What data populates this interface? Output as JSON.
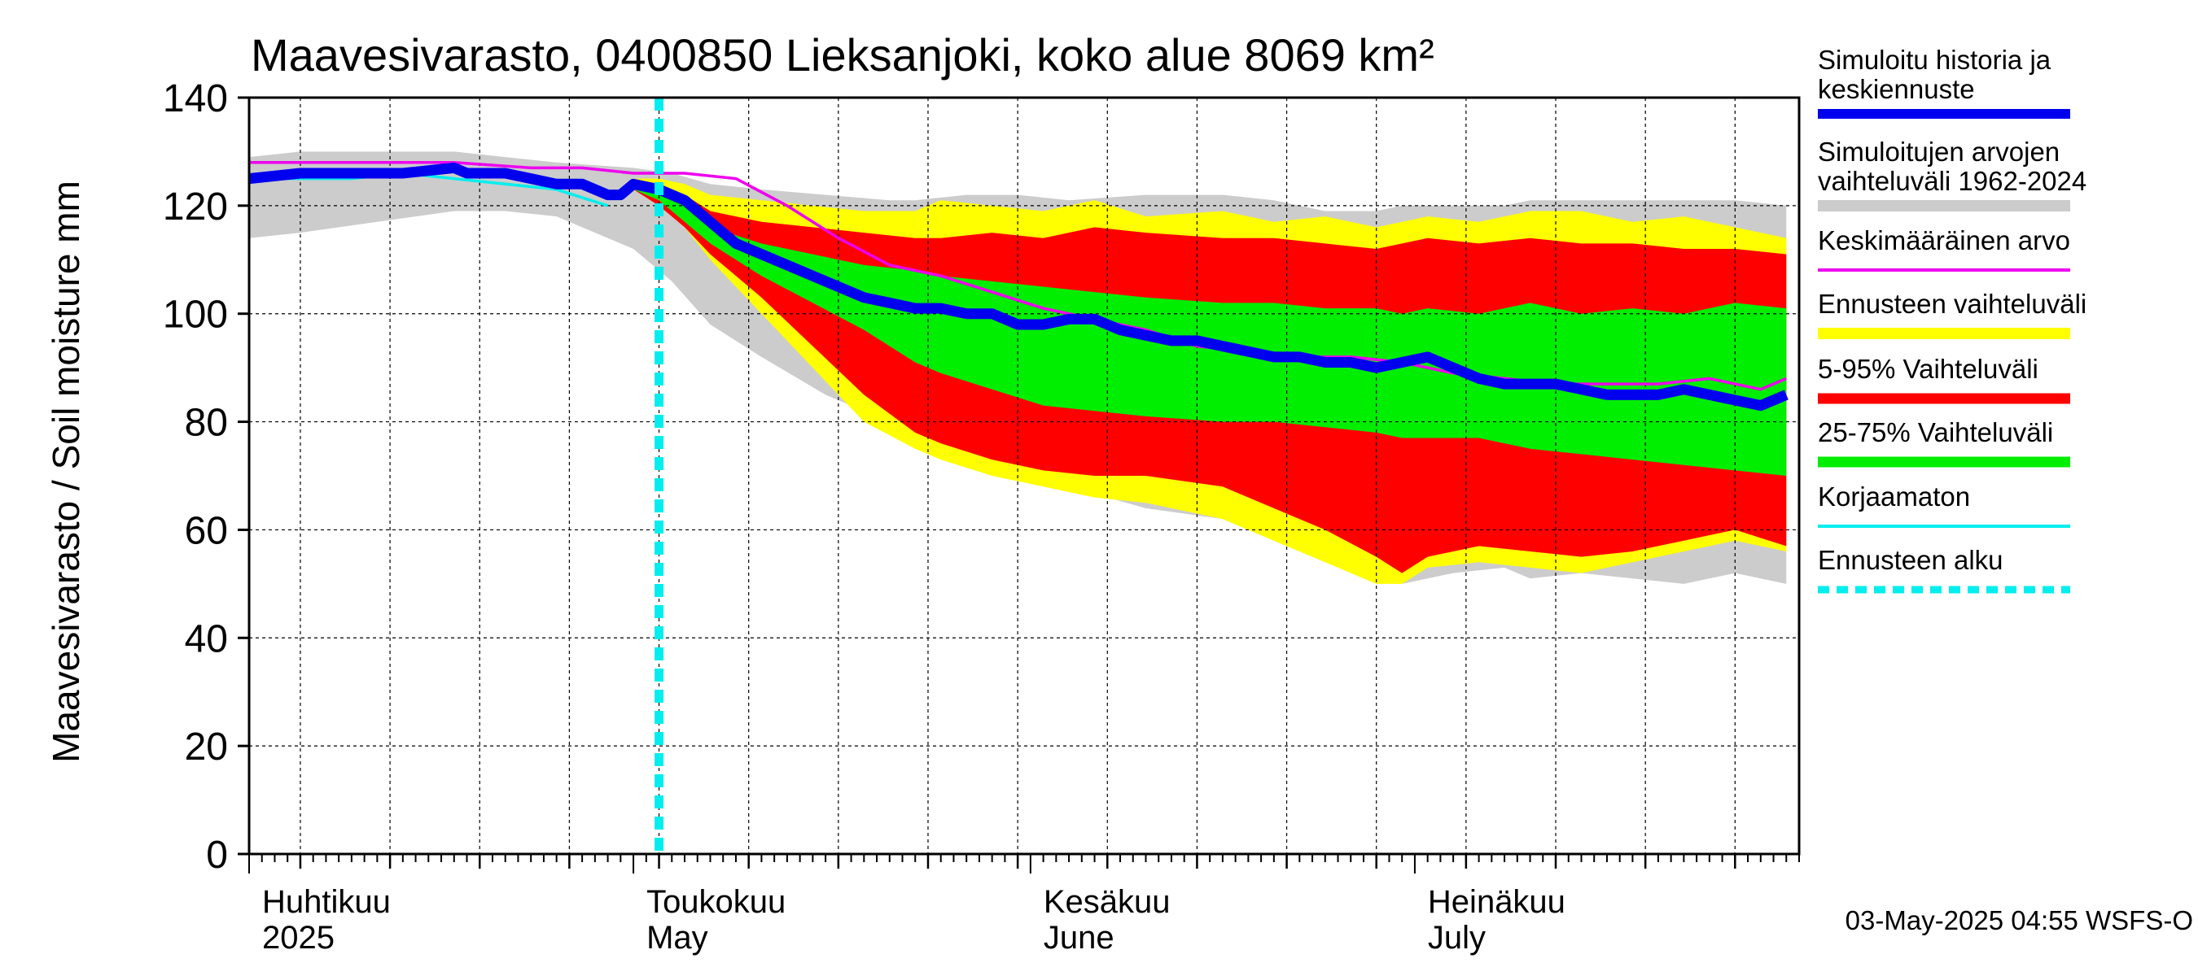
{
  "chart_data": {
    "type": "area",
    "title": "Maavesivarasto, 0400850 Lieksanjoki, koko alue 8069 km²",
    "ylabel": "Maavesivarasto / Soil moisture   mm",
    "ylim": [
      0,
      140
    ],
    "yticks": [
      0,
      20,
      40,
      60,
      80,
      100,
      120,
      140
    ],
    "x_start": "2025-04-01",
    "x_end": "2025-07-31",
    "forecast_start": "2025-05-03",
    "months": [
      {
        "fi": "Huhtikuu",
        "en": "2025",
        "day": 0
      },
      {
        "fi": "Toukokuu",
        "en": "May",
        "day": 30
      },
      {
        "fi": "Kesäkuu",
        "en": "June",
        "day": 61
      },
      {
        "fi": "Heinäkuu",
        "en": "July",
        "day": 91
      }
    ],
    "timestamp": "03-May-2025 04:55 WSFS-O",
    "legend": [
      {
        "label": "Simuloitu historia ja keskiennuste",
        "color": "#0000ee",
        "style": "thick"
      },
      {
        "label": "Simuloitujen arvojen vaihteluväli 1962-2024",
        "color": "#cccccc",
        "style": "band"
      },
      {
        "label": "Keskimääräinen arvo",
        "color": "#ee00ee",
        "style": "line"
      },
      {
        "label": "Ennusteen vaihteluväli",
        "color": "#ffff00",
        "style": "band"
      },
      {
        "label": "5-95% Vaihteluväli",
        "color": "#ff0000",
        "style": "band"
      },
      {
        "label": "25-75% Vaihteluväli",
        "color": "#00ee00",
        "style": "band"
      },
      {
        "label": "Korjaamaton",
        "color": "#00eeee",
        "style": "line"
      },
      {
        "label": "Ennusteen alku",
        "color": "#00eeee",
        "style": "dashed"
      }
    ],
    "series": [
      {
        "name": "Simuloitujen arvojen vaihteluväli 1962-2024",
        "color": "#cccccc",
        "x": [
          0,
          4,
          10,
          16,
          20,
          24,
          30,
          33,
          36,
          40,
          45,
          50,
          52,
          56,
          60,
          64,
          70,
          76,
          80,
          84,
          88,
          90,
          94,
          98,
          100,
          104,
          108,
          112,
          116,
          120
        ],
        "upper": [
          129,
          130,
          130,
          130,
          129,
          128,
          127,
          126,
          124,
          123,
          122,
          121,
          121,
          122,
          122,
          121,
          122,
          122,
          121,
          119,
          119,
          120,
          120,
          120,
          121,
          121,
          121,
          121,
          121,
          120
        ],
        "lower": [
          114,
          115,
          117,
          119,
          119,
          118,
          112,
          106,
          98,
          92,
          85,
          80,
          76,
          74,
          73,
          68,
          64,
          62,
          58,
          54,
          51,
          50,
          52,
          53,
          51,
          52,
          51,
          50,
          52,
          50
        ]
      },
      {
        "name": "Ennusteen vaihteluväli",
        "color": "#ffff00",
        "x": [
          30,
          32,
          34,
          36,
          40,
          44,
          48,
          52,
          54,
          58,
          62,
          66,
          70,
          76,
          80,
          84,
          88,
          90,
          92,
          96,
          100,
          104,
          108,
          112,
          116,
          120
        ],
        "upper": [
          125,
          125,
          124,
          122,
          121,
          120,
          119,
          119,
          121,
          120,
          119,
          121,
          118,
          119,
          117,
          118,
          116,
          117,
          118,
          117,
          119,
          119,
          117,
          118,
          116,
          114
        ],
        "lower": [
          123,
          120,
          116,
          110,
          100,
          90,
          80,
          75,
          73,
          70,
          68,
          66,
          65,
          62,
          58,
          54,
          50,
          50,
          53,
          54,
          53,
          52,
          54,
          56,
          58,
          56
        ]
      },
      {
        "name": "5-95% Vaihteluväli",
        "color": "#ff0000",
        "x": [
          30,
          32,
          34,
          36,
          40,
          44,
          48,
          52,
          54,
          58,
          62,
          66,
          70,
          76,
          80,
          84,
          88,
          90,
          92,
          96,
          100,
          104,
          108,
          112,
          116,
          120
        ],
        "upper": [
          124,
          124,
          122,
          119,
          117,
          116,
          115,
          114,
          114,
          115,
          114,
          116,
          115,
          114,
          114,
          113,
          112,
          113,
          114,
          113,
          114,
          113,
          113,
          112,
          112,
          111
        ],
        "lower": [
          123,
          120,
          116,
          111,
          103,
          94,
          85,
          78,
          76,
          73,
          71,
          70,
          70,
          68,
          64,
          60,
          55,
          52,
          55,
          57,
          56,
          55,
          56,
          58,
          60,
          57
        ]
      },
      {
        "name": "25-75% Vaihteluväli",
        "color": "#00ee00",
        "x": [
          30,
          32,
          34,
          36,
          40,
          44,
          48,
          52,
          54,
          58,
          62,
          66,
          70,
          76,
          80,
          84,
          88,
          90,
          92,
          96,
          100,
          104,
          108,
          112,
          116,
          120
        ],
        "upper": [
          124,
          123,
          120,
          116,
          113,
          111,
          109,
          108,
          107,
          106,
          105,
          104,
          103,
          102,
          102,
          101,
          101,
          100,
          101,
          100,
          102,
          100,
          101,
          100,
          102,
          101
        ],
        "lower": [
          123,
          121,
          117,
          113,
          107,
          102,
          97,
          91,
          89,
          86,
          83,
          82,
          81,
          80,
          80,
          79,
          78,
          77,
          77,
          77,
          75,
          74,
          73,
          72,
          71,
          70
        ]
      },
      {
        "name": "Simuloitu historia ja keskiennuste",
        "color": "#0000ee",
        "x": [
          0,
          4,
          8,
          12,
          16,
          17,
          20,
          22,
          24,
          26,
          28,
          29,
          30,
          32,
          34,
          36,
          38,
          40,
          42,
          44,
          46,
          48,
          50,
          52,
          54,
          56,
          58,
          60,
          62,
          64,
          66,
          68,
          70,
          72,
          74,
          76,
          78,
          80,
          82,
          84,
          86,
          88,
          90,
          92,
          94,
          96,
          98,
          100,
          102,
          104,
          106,
          108,
          110,
          112,
          114,
          116,
          118,
          120
        ],
        "values": [
          125,
          126,
          126,
          126,
          127,
          126,
          126,
          125,
          124,
          124,
          122,
          122,
          124,
          123,
          121,
          117,
          113,
          111,
          109,
          107,
          105,
          103,
          102,
          101,
          101,
          100,
          100,
          98,
          98,
          99,
          99,
          97,
          96,
          95,
          95,
          94,
          93,
          92,
          92,
          91,
          91,
          90,
          91,
          92,
          90,
          88,
          87,
          87,
          87,
          86,
          85,
          85,
          85,
          86,
          85,
          84,
          83,
          85
        ]
      },
      {
        "name": "Keskimääräinen arvo",
        "color": "#ee00ee",
        "x": [
          0,
          8,
          16,
          22,
          26,
          30,
          34,
          38,
          42,
          46,
          50,
          54,
          58,
          62,
          66,
          70,
          74,
          78,
          82,
          86,
          90,
          94,
          98,
          102,
          106,
          110,
          114,
          118,
          120
        ],
        "values": [
          128,
          128,
          128,
          127,
          127,
          126,
          126,
          125,
          120,
          114,
          109,
          107,
          104,
          101,
          99,
          97,
          94,
          93,
          92,
          92,
          91,
          89,
          88,
          87,
          87,
          87,
          88,
          86,
          88
        ]
      },
      {
        "name": "Korjaamaton",
        "color": "#00eeee",
        "x": [
          0,
          4,
          8,
          12,
          16,
          20,
          24,
          28
        ],
        "values": [
          125,
          125,
          125,
          126,
          125,
          124,
          123,
          120
        ]
      }
    ]
  }
}
